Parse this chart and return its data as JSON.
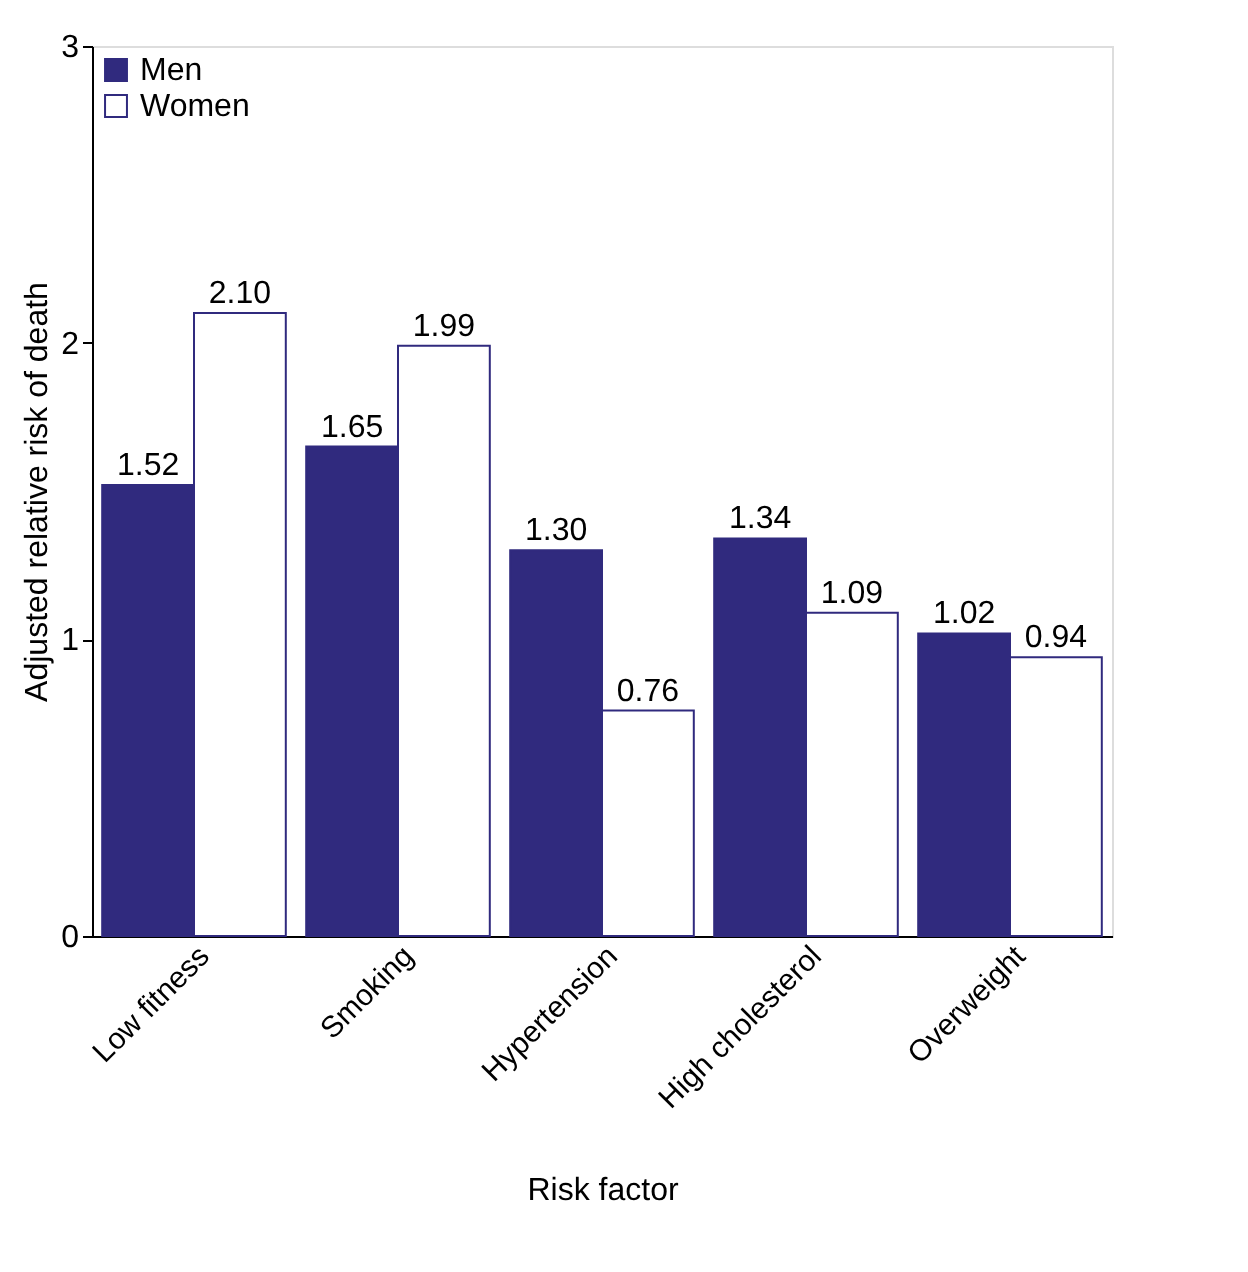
{
  "chart_data": {
    "type": "bar",
    "xlabel": "Risk factor",
    "ylabel": "Adjusted relative risk of death",
    "categories": [
      "Low fitness",
      "Smoking",
      "Hypertension",
      "High cholesterol",
      "Overweight"
    ],
    "series": [
      {
        "name": "Men",
        "color": "#302a7e",
        "values": [
          1.52,
          1.65,
          1.3,
          1.34,
          1.02
        ]
      },
      {
        "name": "Women",
        "color": "#ffffff",
        "values": [
          2.1,
          1.99,
          0.76,
          1.09,
          0.94
        ]
      }
    ],
    "value_labels": [
      [
        "1.52",
        "1.65",
        "1.30",
        "1.34",
        "1.02"
      ],
      [
        "2.10",
        "1.99",
        "0.76",
        "1.09",
        "0.94"
      ]
    ],
    "ylim": [
      0,
      3
    ],
    "yticks": [
      0,
      1,
      2,
      3
    ],
    "grid": false,
    "legend": "top left"
  }
}
